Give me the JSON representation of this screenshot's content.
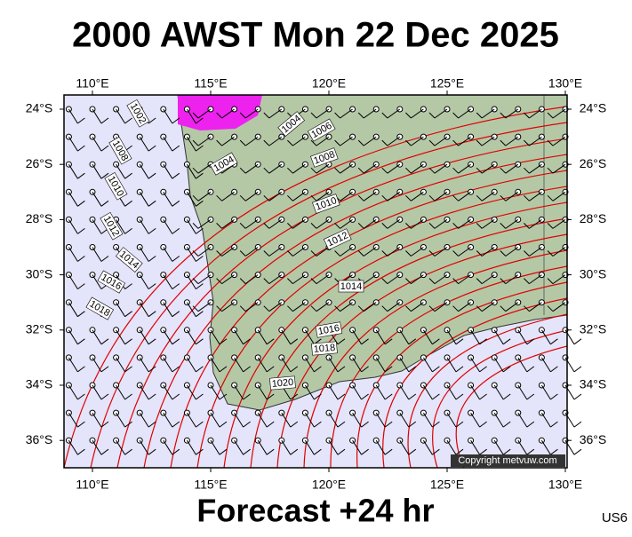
{
  "title": "2000 AWST Mon 22 Dec 2025",
  "footer": "Forecast +24 hr",
  "code": "US6",
  "copyright": "Copyright metvuw.com",
  "map": {
    "lon_ticks": [
      {
        "value": 110,
        "label": "110°E"
      },
      {
        "value": 115,
        "label": "115°E"
      },
      {
        "value": 120,
        "label": "120°E"
      },
      {
        "value": 125,
        "label": "125°E"
      },
      {
        "value": 130,
        "label": "130°E"
      }
    ],
    "lat_ticks": [
      {
        "value": -24,
        "label": "24°S"
      },
      {
        "value": -26,
        "label": "26°S"
      },
      {
        "value": -28,
        "label": "28°S"
      },
      {
        "value": -30,
        "label": "30°S"
      },
      {
        "value": -32,
        "label": "32°S"
      },
      {
        "value": -34,
        "label": "34°S"
      },
      {
        "value": -36,
        "label": "36°S"
      }
    ],
    "isobar_labels": [
      "1002",
      "1004",
      "1006",
      "1008",
      "1004",
      "1008",
      "1010",
      "1010",
      "1012",
      "1012",
      "1014",
      "1014",
      "1016",
      "1016",
      "1018",
      "1018",
      "1020"
    ]
  }
}
